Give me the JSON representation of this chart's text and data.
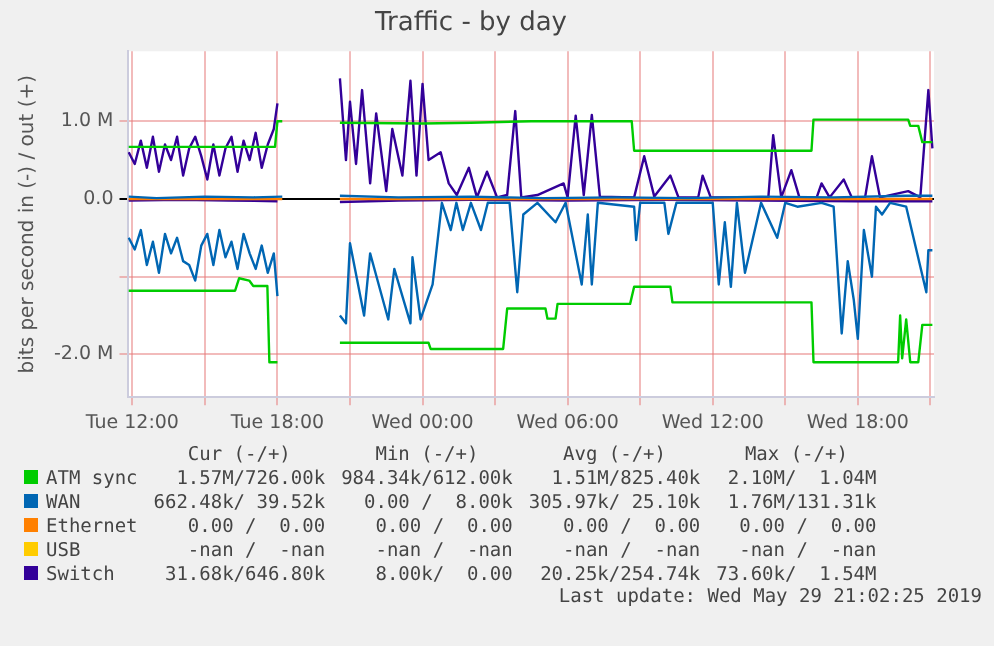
{
  "chart_data": {
    "type": "line",
    "title": "Traffic - by day",
    "ylabel": "bits per second in (-) / out (+)",
    "legend": "bottom",
    "grid": true,
    "xlim": [
      "2019-05-28T11:48",
      "2019-05-29T21:09"
    ],
    "xticks": [
      {
        "value": "2019-05-28T12:00",
        "label": "Tue 12:00"
      },
      {
        "value": "2019-05-28T15:00",
        "label": null
      },
      {
        "value": "2019-05-28T18:00",
        "label": "Tue 18:00"
      },
      {
        "value": "2019-05-28T21:00",
        "label": null
      },
      {
        "value": "2019-05-29T00:00",
        "label": "Wed 00:00"
      },
      {
        "value": "2019-05-29T03:00",
        "label": null
      },
      {
        "value": "2019-05-29T06:00",
        "label": "Wed 06:00"
      },
      {
        "value": "2019-05-29T09:00",
        "label": null
      },
      {
        "value": "2019-05-29T12:00",
        "label": "Wed 12:00"
      },
      {
        "value": "2019-05-29T15:00",
        "label": null
      },
      {
        "value": "2019-05-29T18:00",
        "label": "Wed 18:00"
      },
      {
        "value": "2019-05-29T21:00",
        "label": null
      }
    ],
    "ylim": [
      -2550000,
      1900000
    ],
    "yticks": [
      {
        "value": -2000000,
        "label": "-2.0 M"
      },
      {
        "value": -1000000,
        "label": null
      },
      {
        "value": 0,
        "label": "0.0"
      },
      {
        "value": 1000000,
        "label": "1.0 M"
      }
    ],
    "series": [
      {
        "name": "ATM sync",
        "color": "#00cc00",
        "x": [
          "2019-05-28T11:51",
          "2019-05-28T17:54",
          "2019-05-28T18:00",
          "2019-05-28T18:12",
          "2019-05-28T19:30",
          "2019-05-28T20:35",
          "2019-05-29T00:00",
          "2019-05-29T02:00",
          "2019-05-29T04:30",
          "2019-05-29T08:39",
          "2019-05-29T08:45",
          "2019-05-29T16:05",
          "2019-05-29T16:10",
          "2019-05-29T20:05",
          "2019-05-29T20:10",
          "2019-05-29T20:30",
          "2019-05-29T20:40",
          "2019-05-29T21:05"
        ],
        "values": [
          670000,
          670000,
          1000000,
          1000000,
          null,
          980000,
          970000,
          980000,
          1000000,
          1000000,
          620000,
          620000,
          1020000,
          1020000,
          940000,
          940000,
          730000,
          730000
        ]
      },
      {
        "color": "#00cc00",
        "x": [
          "2019-05-28T11:51",
          "2019-05-28T16:15",
          "2019-05-28T16:25",
          "2019-05-28T16:50",
          "2019-05-28T17:00",
          "2019-05-28T17:35",
          "2019-05-28T17:40",
          "2019-05-28T18:00",
          "2019-05-28T19:30",
          "2019-05-28T20:35",
          "2019-05-29T00:15",
          "2019-05-29T00:20",
          "2019-05-29T03:20",
          "2019-05-29T03:30",
          "2019-05-29T05:05",
          "2019-05-29T05:10",
          "2019-05-29T05:30",
          "2019-05-29T05:35",
          "2019-05-29T08:35",
          "2019-05-29T08:45",
          "2019-05-29T10:15",
          "2019-05-29T10:20",
          "2019-05-29T16:05",
          "2019-05-29T16:10",
          "2019-05-29T19:40",
          "2019-05-29T19:45",
          "2019-05-29T19:50",
          "2019-05-29T20:00",
          "2019-05-29T20:10",
          "2019-05-29T20:30",
          "2019-05-29T20:40",
          "2019-05-29T21:05"
        ],
        "values": [
          -1180000,
          -1180000,
          -1020000,
          -1050000,
          -1120000,
          -1120000,
          -2100000,
          -2100000,
          null,
          -1850000,
          -1850000,
          -1930000,
          -1930000,
          -1410000,
          -1410000,
          -1540000,
          -1540000,
          -1350000,
          -1350000,
          -1130000,
          -1130000,
          -1330000,
          -1330000,
          -2100000,
          -2100000,
          -1500000,
          -2050000,
          -1550000,
          -2100000,
          -2100000,
          -1620000,
          -1620000
        ]
      },
      {
        "name": "WAN",
        "color": "#0066b3",
        "x": [
          "2019-05-28T11:51",
          "2019-05-28T13:00",
          "2019-05-28T15:00",
          "2019-05-28T17:00",
          "2019-05-28T18:12",
          "2019-05-28T19:30",
          "2019-05-28T20:35",
          "2019-05-28T23:00",
          "2019-05-29T02:00",
          "2019-05-29T05:00",
          "2019-05-29T08:00",
          "2019-05-29T11:00",
          "2019-05-29T14:00",
          "2019-05-29T17:00",
          "2019-05-29T20:00",
          "2019-05-29T21:05"
        ],
        "values": [
          30000,
          10000,
          30000,
          20000,
          30000,
          null,
          40000,
          20000,
          30000,
          10000,
          20000,
          10000,
          30000,
          20000,
          40000,
          40000
        ]
      },
      {
        "color": "#0066b3",
        "x": [
          "2019-05-28T11:51",
          "2019-05-28T12:06",
          "2019-05-28T12:21",
          "2019-05-28T12:36",
          "2019-05-28T12:51",
          "2019-05-28T13:06",
          "2019-05-28T13:21",
          "2019-05-28T13:36",
          "2019-05-28T13:51",
          "2019-05-28T14:06",
          "2019-05-28T14:21",
          "2019-05-28T14:36",
          "2019-05-28T14:51",
          "2019-05-28T15:06",
          "2019-05-28T15:21",
          "2019-05-28T15:36",
          "2019-05-28T15:51",
          "2019-05-28T16:06",
          "2019-05-28T16:21",
          "2019-05-28T16:36",
          "2019-05-28T16:51",
          "2019-05-28T17:06",
          "2019-05-28T17:21",
          "2019-05-28T17:36",
          "2019-05-28T17:51",
          "2019-05-28T18:00",
          "2019-05-28T19:30",
          "2019-05-28T20:35",
          "2019-05-28T20:50",
          "2019-05-28T21:00",
          "2019-05-28T21:35",
          "2019-05-28T21:50",
          "2019-05-28T22:35",
          "2019-05-28T22:50",
          "2019-05-28T23:30",
          "2019-05-28T23:35",
          "2019-05-28T23:55",
          "2019-05-29T00:25",
          "2019-05-29T00:48",
          "2019-05-29T01:10",
          "2019-05-29T01:24",
          "2019-05-29T01:40",
          "2019-05-29T02:00",
          "2019-05-29T02:25",
          "2019-05-29T02:42",
          "2019-05-29T03:36",
          "2019-05-29T03:55",
          "2019-05-29T04:10",
          "2019-05-29T04:45",
          "2019-05-29T05:30",
          "2019-05-29T05:55",
          "2019-05-29T06:35",
          "2019-05-29T06:50",
          "2019-05-29T07:00",
          "2019-05-29T07:15",
          "2019-05-29T08:45",
          "2019-05-29T08:50",
          "2019-05-29T09:00",
          "2019-05-29T10:00",
          "2019-05-29T10:10",
          "2019-05-29T10:30",
          "2019-05-29T11:30",
          "2019-05-29T12:00",
          "2019-05-29T12:15",
          "2019-05-29T12:30",
          "2019-05-29T12:45",
          "2019-05-29T13:00",
          "2019-05-29T13:20",
          "2019-05-29T14:00",
          "2019-05-29T14:40",
          "2019-05-29T15:00",
          "2019-05-29T15:30",
          "2019-05-29T16:30",
          "2019-05-29T17:00",
          "2019-05-29T17:20",
          "2019-05-29T17:35",
          "2019-05-29T17:50",
          "2019-05-29T18:00",
          "2019-05-29T18:15",
          "2019-05-29T18:35",
          "2019-05-29T18:45",
          "2019-05-29T19:00",
          "2019-05-29T19:20",
          "2019-05-29T20:00",
          "2019-05-29T20:50",
          "2019-05-29T20:55",
          "2019-05-29T21:05"
        ],
        "values": [
          -500000,
          -650000,
          -400000,
          -850000,
          -550000,
          -950000,
          -450000,
          -700000,
          -500000,
          -800000,
          -850000,
          -1050000,
          -600000,
          -450000,
          -850000,
          -400000,
          -750000,
          -550000,
          -900000,
          -450000,
          -700000,
          -900000,
          -600000,
          -950000,
          -700000,
          -1250000,
          null,
          -1500000,
          -1600000,
          -570000,
          -1500000,
          -700000,
          -1550000,
          -900000,
          -1600000,
          -750000,
          -1550000,
          -1100000,
          -50000,
          -400000,
          -50000,
          -400000,
          -50000,
          -400000,
          -50000,
          -50000,
          -1200000,
          -200000,
          -50000,
          -300000,
          -50000,
          -1100000,
          -200000,
          -1100000,
          -50000,
          -100000,
          -530000,
          -50000,
          -50000,
          -450000,
          -50000,
          -50000,
          -50000,
          -1100000,
          -300000,
          -1130000,
          -50000,
          -950000,
          -50000,
          -500000,
          -50000,
          -100000,
          -50000,
          -100000,
          -1730000,
          -800000,
          -1300000,
          -1800000,
          -400000,
          -1000000,
          -100000,
          -200000,
          -50000,
          -100000,
          -1200000,
          -660000,
          -660000
        ]
      },
      {
        "name": "Ethernet",
        "color": "#ff8000",
        "x": [
          "2019-05-28T11:51",
          "2019-05-28T18:12",
          "2019-05-28T19:30",
          "2019-05-28T20:35",
          "2019-05-29T21:05"
        ],
        "values": [
          0,
          0,
          null,
          0,
          0
        ]
      },
      {
        "name": "USB",
        "color": "#ffcc00"
      },
      {
        "name": "Switch",
        "color": "#330099",
        "x": [
          "2019-05-28T11:51",
          "2019-05-28T12:06",
          "2019-05-28T12:21",
          "2019-05-28T12:36",
          "2019-05-28T12:51",
          "2019-05-28T13:06",
          "2019-05-28T13:21",
          "2019-05-28T13:36",
          "2019-05-28T13:51",
          "2019-05-28T14:06",
          "2019-05-28T14:21",
          "2019-05-28T14:36",
          "2019-05-28T14:51",
          "2019-05-28T15:06",
          "2019-05-28T15:21",
          "2019-05-28T15:36",
          "2019-05-28T15:51",
          "2019-05-28T16:06",
          "2019-05-28T16:21",
          "2019-05-28T16:36",
          "2019-05-28T16:51",
          "2019-05-28T17:06",
          "2019-05-28T17:21",
          "2019-05-28T17:36",
          "2019-05-28T17:51",
          "2019-05-28T18:00",
          "2019-05-28T19:30",
          "2019-05-28T20:35",
          "2019-05-28T20:50",
          "2019-05-28T21:00",
          "2019-05-28T21:15",
          "2019-05-28T21:30",
          "2019-05-28T21:50",
          "2019-05-28T22:05",
          "2019-05-28T22:30",
          "2019-05-28T22:45",
          "2019-05-28T23:10",
          "2019-05-28T23:30",
          "2019-05-28T23:45",
          "2019-05-29T00:00",
          "2019-05-29T00:15",
          "2019-05-29T00:45",
          "2019-05-29T01:05",
          "2019-05-29T01:25",
          "2019-05-29T01:55",
          "2019-05-29T02:15",
          "2019-05-29T02:40",
          "2019-05-29T03:05",
          "2019-05-29T03:30",
          "2019-05-29T03:50",
          "2019-05-29T04:05",
          "2019-05-29T04:45",
          "2019-05-29T05:50",
          "2019-05-29T06:00",
          "2019-05-29T06:20",
          "2019-05-29T06:40",
          "2019-05-29T07:00",
          "2019-05-29T07:20",
          "2019-05-29T08:45",
          "2019-05-29T09:10",
          "2019-05-29T09:35",
          "2019-05-29T10:15",
          "2019-05-29T10:35",
          "2019-05-29T11:24",
          "2019-05-29T11:35",
          "2019-05-29T11:55",
          "2019-05-29T14:18",
          "2019-05-29T14:30",
          "2019-05-29T14:50",
          "2019-05-29T15:15",
          "2019-05-29T15:35",
          "2019-05-29T16:18",
          "2019-05-29T16:30",
          "2019-05-29T16:50",
          "2019-05-29T17:25",
          "2019-05-29T17:45",
          "2019-05-29T18:18",
          "2019-05-29T18:35",
          "2019-05-29T18:55",
          "2019-05-29T20:05",
          "2019-05-29T20:35",
          "2019-05-29T20:55",
          "2019-05-29T21:05"
        ],
        "values": [
          600000,
          450000,
          750000,
          400000,
          800000,
          350000,
          700000,
          500000,
          800000,
          300000,
          650000,
          800000,
          550000,
          250000,
          700000,
          300000,
          650000,
          800000,
          350000,
          750000,
          500000,
          850000,
          400000,
          700000,
          900000,
          1230000,
          null,
          1550000,
          500000,
          1250000,
          450000,
          1400000,
          200000,
          1100000,
          100000,
          900000,
          300000,
          1520000,
          300000,
          1480000,
          500000,
          600000,
          200000,
          50000,
          400000,
          20000,
          350000,
          20000,
          50000,
          1130000,
          20000,
          50000,
          200000,
          20000,
          1070000,
          50000,
          1080000,
          30000,
          20000,
          550000,
          30000,
          300000,
          20000,
          20000,
          300000,
          20000,
          20000,
          820000,
          20000,
          370000,
          20000,
          20000,
          200000,
          20000,
          250000,
          20000,
          20000,
          550000,
          20000,
          100000,
          20000,
          1400000,
          650000
        ]
      },
      {
        "color": "#330099",
        "x": [
          "2019-05-28T11:51",
          "2019-05-28T14:00",
          "2019-05-28T16:00",
          "2019-05-28T18:00",
          "2019-05-28T19:30",
          "2019-05-28T20:35",
          "2019-05-28T23:00",
          "2019-05-29T02:00",
          "2019-05-29T06:00",
          "2019-05-29T10:00",
          "2019-05-29T14:00",
          "2019-05-29T18:00",
          "2019-05-29T21:05"
        ],
        "values": [
          -20000,
          -10000,
          -20000,
          -30000,
          null,
          -40000,
          -20000,
          -10000,
          -20000,
          -10000,
          -20000,
          -30000,
          -30000
        ]
      }
    ],
    "annotations": [
      "Cur (-/+)",
      "Min (-/+)",
      "Avg (-/+)",
      "Max (-/+)",
      "1.57M/726.00k",
      "984.34k/612.00k",
      "1.51M/825.40k",
      "2.10M/  1.04M",
      "662.48k/ 39.52k",
      "0.00 /  8.00k",
      "305.97k/ 25.10k",
      "1.76M/131.31k",
      "0.00 /  0.00",
      "0.00 /  0.00",
      "0.00 /  0.00",
      "0.00 /  0.00",
      "-nan /  -nan",
      "-nan /  -nan",
      "-nan /  -nan",
      "-nan /  -nan",
      "31.68k/646.80k",
      "8.00k/  0.00",
      "20.25k/254.74k",
      "73.60k/  1.54M",
      "Last update: Wed May 29 21:02:25 2019"
    ]
  }
}
